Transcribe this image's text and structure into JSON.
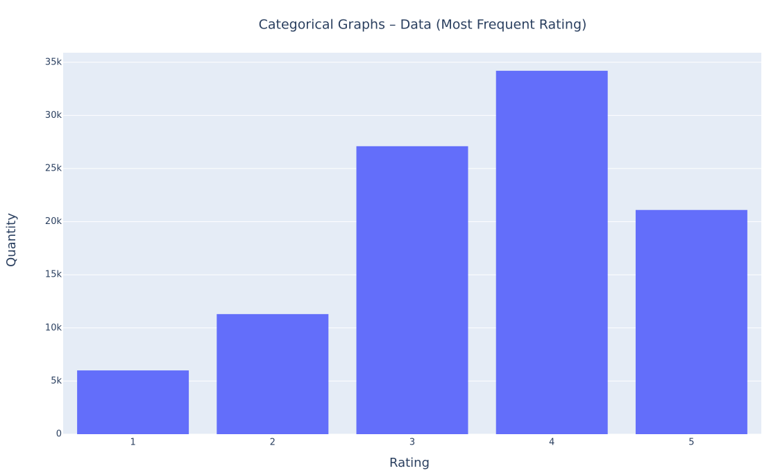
{
  "chart_data": {
    "type": "bar",
    "title": "Categorical Graphs – Data (Most Frequent Rating)",
    "x_label": "Rating",
    "y_label": "Quantity",
    "categories": [
      "1",
      "2",
      "3",
      "4",
      "5"
    ],
    "values": [
      6000,
      11300,
      27100,
      34200,
      21100
    ],
    "color": "#636efa",
    "ylim": [
      0,
      35900
    ],
    "yticks": [
      0,
      {
        "value": 5000,
        "label": "5k"
      },
      {
        "value": 10000,
        "label": "10k"
      },
      {
        "value": 15000,
        "label": "15k"
      },
      {
        "value": 20000,
        "label": "20k"
      },
      {
        "value": 25000,
        "label": "25k"
      },
      {
        "value": 30000,
        "label": "30k"
      },
      {
        "value": 35000,
        "label": "35k"
      }
    ],
    "grid": true
  }
}
